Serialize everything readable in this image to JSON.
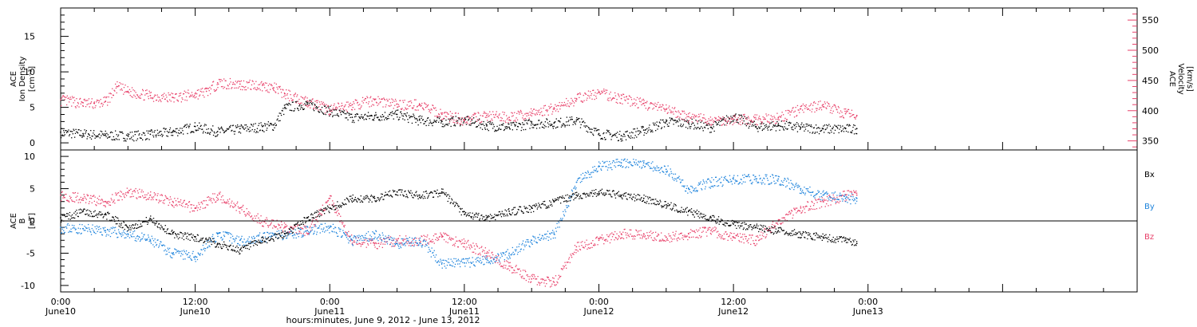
{
  "chart_data": [
    {
      "type": "scatter",
      "panel": "top",
      "left_axis": {
        "label_lines": [
          "ACE",
          "Ion Density",
          "[cm⁻³]"
        ],
        "ylim": [
          -1,
          19
        ],
        "ticks": [
          0,
          5,
          10,
          15
        ]
      },
      "right_axis": {
        "label_lines": [
          "ACE",
          "Velocity",
          "[km/s]"
        ],
        "ylim": [
          335,
          570
        ],
        "ticks": [
          350,
          400,
          450,
          500,
          550
        ],
        "color": "#e8416a"
      },
      "series": [
        {
          "axis": "left",
          "color": "#000000",
          "points": [
            [
              0,
              1.5
            ],
            [
              2,
              1.3
            ],
            [
              4,
              1.1
            ],
            [
              6,
              1.0
            ],
            [
              8,
              1.2
            ],
            [
              10,
              1.6
            ],
            [
              12,
              2.3
            ],
            [
              14,
              1.6
            ],
            [
              16,
              2.0
            ],
            [
              18,
              2.3
            ],
            [
              19,
              2.5
            ],
            [
              20,
              5.0
            ],
            [
              22,
              5.5
            ],
            [
              24,
              4.5
            ],
            [
              26,
              3.6
            ],
            [
              28,
              3.8
            ],
            [
              30,
              4.0
            ],
            [
              32,
              3.2
            ],
            [
              34,
              3.0
            ],
            [
              36,
              3.2
            ],
            [
              38,
              2.5
            ],
            [
              40,
              2.2
            ],
            [
              42,
              2.8
            ],
            [
              44,
              2.8
            ],
            [
              46,
              3.2
            ],
            [
              48,
              1.3
            ],
            [
              50,
              1.0
            ],
            [
              52,
              1.8
            ],
            [
              54,
              3.0
            ],
            [
              56,
              2.8
            ],
            [
              58,
              2.2
            ],
            [
              60,
              3.8
            ],
            [
              62,
              2.3
            ],
            [
              64,
              2.5
            ],
            [
              66,
              2.2
            ],
            [
              68,
              2.0
            ],
            [
              70,
              2.0
            ],
            [
              71,
              2.0
            ]
          ]
        },
        {
          "axis": "right",
          "color": "#e8416a",
          "points": [
            [
              0,
              418
            ],
            [
              2,
              413
            ],
            [
              3,
              412
            ],
            [
              4,
              415
            ],
            [
              5,
              440
            ],
            [
              6,
              432
            ],
            [
              8,
              425
            ],
            [
              10,
              422
            ],
            [
              12,
              428
            ],
            [
              13,
              432
            ],
            [
              14,
              446
            ],
            [
              16,
              444
            ],
            [
              18,
              442
            ],
            [
              19,
              438
            ],
            [
              20,
              428
            ],
            [
              22,
              416
            ],
            [
              24,
              402
            ],
            [
              26,
              410
            ],
            [
              28,
              418
            ],
            [
              30,
              411
            ],
            [
              32,
              410
            ],
            [
              34,
              394
            ],
            [
              36,
              385
            ],
            [
              38,
              392
            ],
            [
              40,
              389
            ],
            [
              42,
              396
            ],
            [
              44,
              405
            ],
            [
              46,
              420
            ],
            [
              48,
              430
            ],
            [
              50,
              420
            ],
            [
              52,
              412
            ],
            [
              54,
              402
            ],
            [
              56,
              390
            ],
            [
              58,
              384
            ],
            [
              60,
              386
            ],
            [
              62,
              386
            ],
            [
              64,
              388
            ],
            [
              66,
              403
            ],
            [
              68,
              410
            ],
            [
              70,
              395
            ],
            [
              71,
              392
            ]
          ]
        }
      ]
    },
    {
      "type": "scatter",
      "panel": "bottom",
      "left_axis": {
        "label_lines": [
          "ACE",
          "B",
          "[nT]"
        ],
        "ylim": [
          -11,
          11
        ],
        "ticks": [
          -10,
          -5,
          0,
          5,
          10
        ]
      },
      "zero_line": true,
      "legend": [
        "Bx",
        "By",
        "Bz"
      ],
      "series": [
        {
          "name": "Bx",
          "color": "#000000",
          "points": [
            [
              0,
              0.5
            ],
            [
              2,
              1.5
            ],
            [
              4,
              1.0
            ],
            [
              6,
              -1.0
            ],
            [
              8,
              0.3
            ],
            [
              10,
              -2.0
            ],
            [
              12,
              -2.5
            ],
            [
              14,
              -3.5
            ],
            [
              16,
              -4.5
            ],
            [
              18,
              -3.0
            ],
            [
              20,
              -2.0
            ],
            [
              22,
              0.5
            ],
            [
              24,
              2.0
            ],
            [
              26,
              3.5
            ],
            [
              28,
              3.5
            ],
            [
              30,
              4.5
            ],
            [
              32,
              4.0
            ],
            [
              34,
              4.5
            ],
            [
              36,
              1.0
            ],
            [
              38,
              0.5
            ],
            [
              40,
              1.5
            ],
            [
              42,
              2.0
            ],
            [
              44,
              3.0
            ],
            [
              46,
              4.0
            ],
            [
              48,
              4.5
            ],
            [
              50,
              4.0
            ],
            [
              52,
              3.5
            ],
            [
              54,
              2.5
            ],
            [
              56,
              1.5
            ],
            [
              58,
              0.5
            ],
            [
              60,
              -0.5
            ],
            [
              62,
              -1.0
            ],
            [
              64,
              -1.5
            ],
            [
              66,
              -2.0
            ],
            [
              68,
              -2.5
            ],
            [
              70,
              -3.0
            ],
            [
              71,
              -3.5
            ]
          ]
        },
        {
          "name": "By",
          "color": "#1f84dc",
          "points": [
            [
              0,
              -1.0
            ],
            [
              2,
              -1.2
            ],
            [
              4,
              -1.5
            ],
            [
              6,
              -2.0
            ],
            [
              8,
              -3.0
            ],
            [
              10,
              -5.0
            ],
            [
              12,
              -5.5
            ],
            [
              14,
              -2.0
            ],
            [
              16,
              -3.0
            ],
            [
              18,
              -2.5
            ],
            [
              20,
              -2.0
            ],
            [
              22,
              -1.5
            ],
            [
              24,
              -1.0
            ],
            [
              26,
              -3.0
            ],
            [
              28,
              -2.0
            ],
            [
              30,
              -3.5
            ],
            [
              32,
              -3.0
            ],
            [
              34,
              -6.5
            ],
            [
              36,
              -6.5
            ],
            [
              38,
              -6.0
            ],
            [
              40,
              -5.0
            ],
            [
              42,
              -3.0
            ],
            [
              44,
              -2.0
            ],
            [
              46,
              6.0
            ],
            [
              48,
              8.5
            ],
            [
              50,
              9.0
            ],
            [
              52,
              9.0
            ],
            [
              54,
              8.0
            ],
            [
              56,
              5.0
            ],
            [
              58,
              6.0
            ],
            [
              60,
              6.5
            ],
            [
              62,
              6.5
            ],
            [
              64,
              6.5
            ],
            [
              66,
              5.0
            ],
            [
              68,
              4.0
            ],
            [
              70,
              3.5
            ],
            [
              71,
              3.5
            ]
          ]
        },
        {
          "name": "Bz",
          "color": "#e8416a",
          "points": [
            [
              0,
              4.0
            ],
            [
              2,
              3.5
            ],
            [
              4,
              3.0
            ],
            [
              6,
              4.5
            ],
            [
              8,
              4.0
            ],
            [
              10,
              3.0
            ],
            [
              12,
              2.0
            ],
            [
              14,
              4.0
            ],
            [
              16,
              2.0
            ],
            [
              18,
              0.0
            ],
            [
              20,
              -1.0
            ],
            [
              22,
              -1.5
            ],
            [
              24,
              3.5
            ],
            [
              26,
              -3.0
            ],
            [
              28,
              -3.5
            ],
            [
              30,
              -3.0
            ],
            [
              32,
              -3.0
            ],
            [
              34,
              -2.5
            ],
            [
              36,
              -3.5
            ],
            [
              38,
              -5.0
            ],
            [
              40,
              -7.0
            ],
            [
              42,
              -9.0
            ],
            [
              44,
              -9.5
            ],
            [
              46,
              -4.0
            ],
            [
              48,
              -3.0
            ],
            [
              50,
              -2.0
            ],
            [
              52,
              -2.0
            ],
            [
              54,
              -2.5
            ],
            [
              56,
              -2.0
            ],
            [
              58,
              -1.5
            ],
            [
              60,
              -2.5
            ],
            [
              62,
              -3.0
            ],
            [
              64,
              0.0
            ],
            [
              66,
              2.0
            ],
            [
              68,
              3.0
            ],
            [
              70,
              4.0
            ],
            [
              71,
              4.0
            ]
          ]
        }
      ]
    }
  ],
  "x_axis": {
    "xlim_hours": [
      0,
      96
    ],
    "ticks": [
      {
        "hour": 0,
        "time": "0:00",
        "date": "June10"
      },
      {
        "hour": 12,
        "time": "12:00",
        "date": "June10"
      },
      {
        "hour": 24,
        "time": "0:00",
        "date": "June11"
      },
      {
        "hour": 36,
        "time": "12:00",
        "date": "June11"
      },
      {
        "hour": 48,
        "time": "0:00",
        "date": "June12"
      },
      {
        "hour": 60,
        "time": "12:00",
        "date": "June12"
      },
      {
        "hour": 72,
        "time": "0:00",
        "date": "June13"
      }
    ],
    "xlabel": "hours:minutes, June  9, 2012 - June 13, 2012"
  }
}
